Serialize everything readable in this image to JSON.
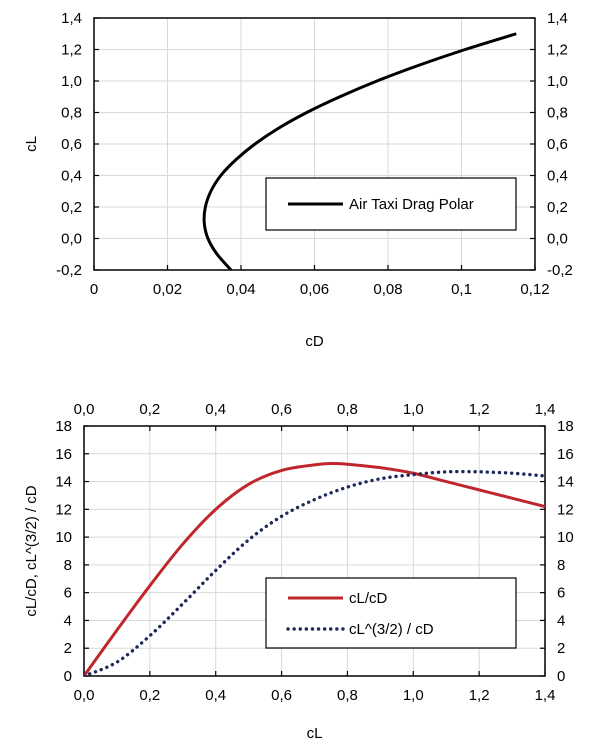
{
  "chart_data": [
    {
      "type": "line",
      "xlabel": "cD",
      "ylabel": "cL",
      "xlim": [
        0,
        0.12
      ],
      "ylim": [
        -0.2,
        1.4
      ],
      "x_ticks": [
        "0",
        "0,02",
        "0,04",
        "0,06",
        "0,08",
        "0,1",
        "0,12"
      ],
      "y_ticks": [
        "-0,2",
        "0,0",
        "0,2",
        "0,4",
        "0,6",
        "0,8",
        "1,0",
        "1,2",
        "1,4"
      ],
      "right_y_ticks": true,
      "grid": true,
      "legend": "center-right",
      "series": [
        {
          "name": "Air Taxi Drag Polar",
          "color": "#000000",
          "style": "solid",
          "x": [
            0.0373,
            0.0335,
            0.031,
            0.03,
            0.0303,
            0.0318,
            0.0345,
            0.0386,
            0.0438,
            0.0502,
            0.0579,
            0.0669,
            0.077,
            0.0884,
            0.101,
            0.1149
          ],
          "y": [
            -0.2,
            -0.1,
            0.0,
            0.1,
            0.2,
            0.3,
            0.4,
            0.5,
            0.6,
            0.7,
            0.8,
            0.9,
            1.0,
            1.1,
            1.2,
            1.3
          ]
        }
      ]
    },
    {
      "type": "line",
      "xlabel": "cL",
      "ylabel": "cL/cD, cL^(3/2) / cD",
      "xlim": [
        0,
        1.4
      ],
      "ylim": [
        0,
        18
      ],
      "x_ticks": [
        "0,0",
        "0,2",
        "0,4",
        "0,6",
        "0,8",
        "1,0",
        "1,2",
        "1,4"
      ],
      "y_ticks": [
        "0",
        "2",
        "4",
        "6",
        "8",
        "10",
        "12",
        "14",
        "16",
        "18"
      ],
      "top_x_ticks": true,
      "right_y_ticks": true,
      "grid": true,
      "legend": "bottom-right",
      "series": [
        {
          "name": "cL/cD",
          "color": "#c0272d",
          "style": "solid",
          "x": [
            0.0,
            0.1,
            0.2,
            0.3,
            0.4,
            0.5,
            0.6,
            0.7,
            0.75,
            0.8,
            0.9,
            1.0,
            1.1,
            1.2,
            1.3,
            1.4
          ],
          "y": [
            0.0,
            3.3,
            6.5,
            9.5,
            12.0,
            13.8,
            14.8,
            15.2,
            15.3,
            15.25,
            15.0,
            14.6,
            14.0,
            13.4,
            12.8,
            12.2
          ]
        },
        {
          "name": "cL^(3/2) / cD",
          "color": "#1f2a5c",
          "style": "dotted",
          "x": [
            0.0,
            0.1,
            0.2,
            0.3,
            0.4,
            0.5,
            0.6,
            0.7,
            0.8,
            0.9,
            1.0,
            1.1,
            1.2,
            1.3,
            1.4
          ],
          "y": [
            0.0,
            1.0,
            2.9,
            5.2,
            7.6,
            9.8,
            11.5,
            12.7,
            13.6,
            14.2,
            14.5,
            14.7,
            14.7,
            14.6,
            14.4
          ]
        }
      ]
    }
  ]
}
